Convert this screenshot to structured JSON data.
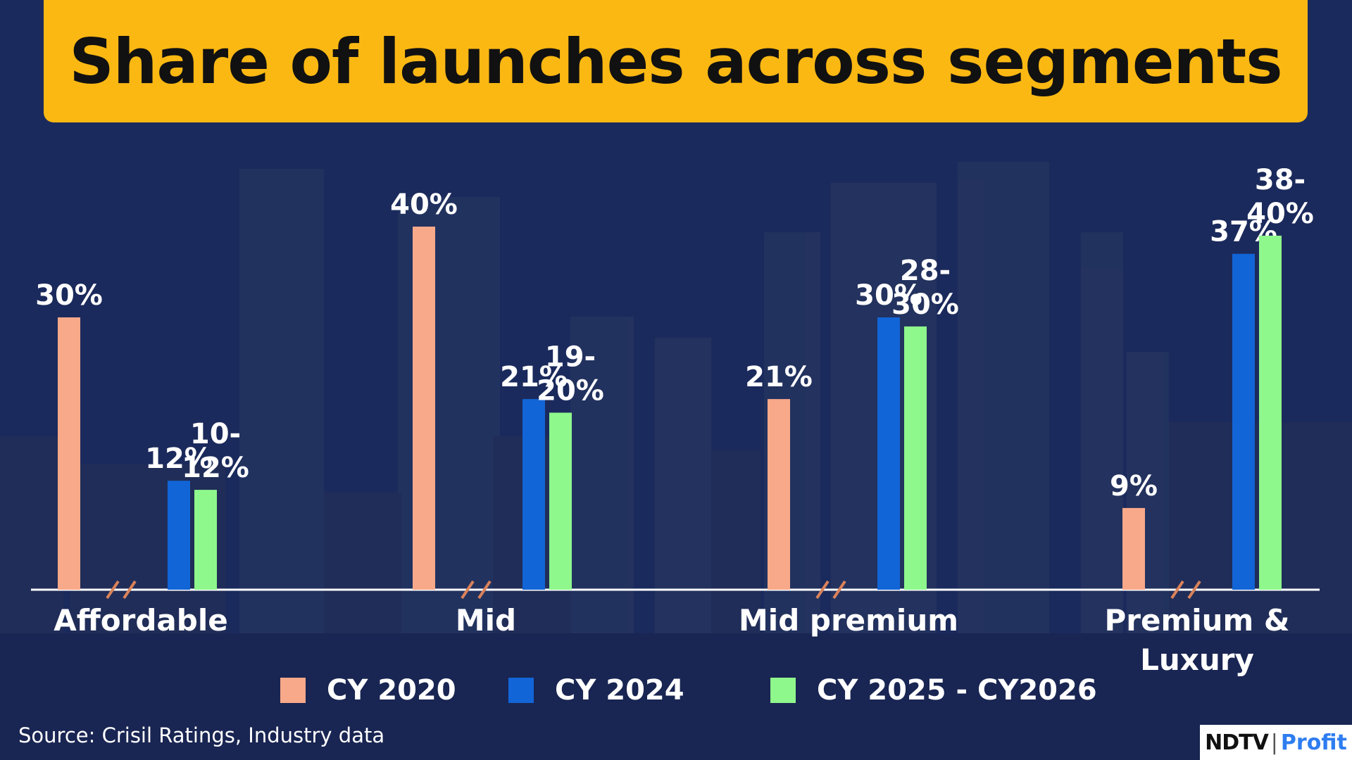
{
  "title": "Share of launches across segments",
  "source": "Source: Crisil Ratings, Industry data",
  "logo": {
    "brand": "NDTV",
    "product": "Profit"
  },
  "chart_data": {
    "type": "bar",
    "categories": [
      "Affordable",
      "Mid",
      "Mid premium",
      "Premium & Luxury"
    ],
    "category_label_lines": [
      [
        "Affordable"
      ],
      [
        "Mid"
      ],
      [
        "Mid premium"
      ],
      [
        "Premium &",
        "Luxury"
      ]
    ],
    "series": [
      {
        "name": "CY 2020",
        "color": "#f8a98a",
        "values": [
          30,
          40,
          21,
          9
        ],
        "labels": [
          [
            "30%"
          ],
          [
            "40%"
          ],
          [
            "21%"
          ],
          [
            "9%"
          ]
        ]
      },
      {
        "name": "CY 2024",
        "color": "#1265d6",
        "values": [
          12,
          21,
          30,
          37
        ],
        "labels": [
          [
            "12%"
          ],
          [
            "21%"
          ],
          [
            "30%"
          ],
          [
            "37%"
          ]
        ]
      },
      {
        "name": "CY 2025 - CY2026",
        "color": "#8ff88c",
        "values": [
          11,
          19.5,
          29,
          39
        ],
        "labels": [
          [
            "10-",
            "12%"
          ],
          [
            "19-",
            "20%"
          ],
          [
            "28-",
            "30%"
          ],
          [
            "38-",
            "40%"
          ]
        ]
      }
    ],
    "axis_break": true,
    "ylim": [
      0,
      42
    ],
    "grid": false,
    "legend_position": "bottom",
    "xlabel": "",
    "ylabel": ""
  }
}
